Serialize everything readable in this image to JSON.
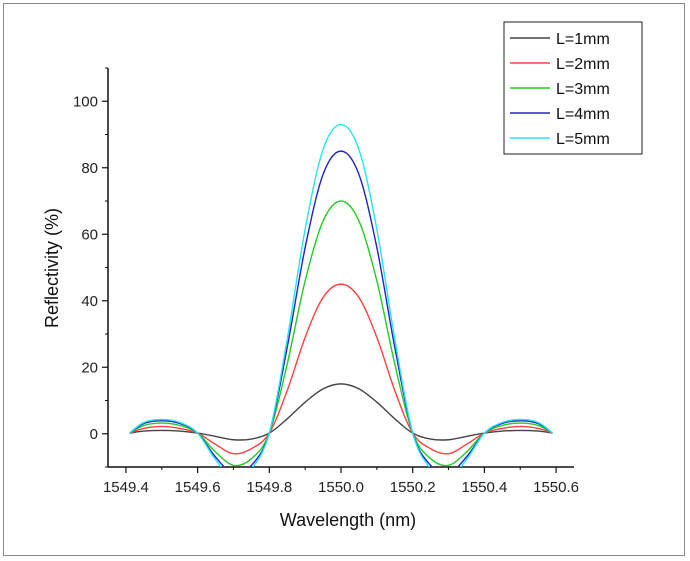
{
  "chart_data": {
    "type": "line",
    "title": "",
    "xlabel": "Wavelength (nm)",
    "ylabel": "Reflectivity (%)",
    "xlim": [
      1549.35,
      1550.65
    ],
    "ylim": [
      -10,
      110
    ],
    "xticks": [
      1549.4,
      1549.6,
      1549.8,
      1550.0,
      1550.2,
      1550.4,
      1550.6
    ],
    "xtick_labels": [
      "1549.4",
      "1549.6",
      "1549.8",
      "1550.0",
      "1550.2",
      "1550.4",
      "1550.6"
    ],
    "yticks": [
      0,
      20,
      40,
      60,
      80,
      100
    ],
    "ytick_labels": [
      "0",
      "20",
      "40",
      "60",
      "80",
      "100"
    ],
    "grid": false,
    "legend_position": "top-right",
    "x": [
      1549.41,
      1549.45,
      1549.5,
      1549.55,
      1549.6,
      1549.65,
      1549.7,
      1549.75,
      1549.8,
      1549.85,
      1549.9,
      1549.95,
      1550.0,
      1550.05,
      1550.1,
      1550.15,
      1550.2,
      1550.25,
      1550.3,
      1550.35,
      1550.4,
      1550.45,
      1550.5,
      1550.55,
      1550.59
    ],
    "series": [
      {
        "name": "L=1mm",
        "color": "#444444",
        "values": [
          0.2,
          0.8,
          1.0,
          0.8,
          0.2,
          -0.8,
          -1.8,
          -1.6,
          0.2,
          4.5,
          9.5,
          13.5,
          15.0,
          13.5,
          9.5,
          4.5,
          0.2,
          -1.6,
          -1.8,
          -0.8,
          0.2,
          0.8,
          1.0,
          0.8,
          0.2
        ]
      },
      {
        "name": "L=2mm",
        "color": "#ff4040",
        "values": [
          0.2,
          1.6,
          2.2,
          1.6,
          0.2,
          -3.2,
          -6.0,
          -4.5,
          0.2,
          13.0,
          29.0,
          41.0,
          45.0,
          41.0,
          29.0,
          13.0,
          0.2,
          -4.5,
          -6.0,
          -3.2,
          0.2,
          1.6,
          2.2,
          1.6,
          0.2
        ]
      },
      {
        "name": "L=3mm",
        "color": "#22cc22",
        "values": [
          0.2,
          2.5,
          3.2,
          2.5,
          0.2,
          -5.5,
          -9.5,
          -7.5,
          0.2,
          21.0,
          46.0,
          64.0,
          70.0,
          64.0,
          46.0,
          21.0,
          0.2,
          -7.5,
          -9.5,
          -5.5,
          0.2,
          2.5,
          3.2,
          2.5,
          0.2
        ]
      },
      {
        "name": "L=4mm",
        "color": "#2222cc",
        "values": [
          0.2,
          3.1,
          3.9,
          3.1,
          0.2,
          -7.0,
          -12.0,
          -9.5,
          0.2,
          26.0,
          56.0,
          78.0,
          85.0,
          78.0,
          56.0,
          26.0,
          0.2,
          -9.5,
          -12.0,
          -7.0,
          0.2,
          3.1,
          3.9,
          3.1,
          0.2
        ]
      },
      {
        "name": "L=5mm",
        "color": "#22e6ee",
        "values": [
          0.2,
          3.4,
          4.3,
          3.4,
          0.2,
          -7.8,
          -13.5,
          -10.5,
          0.2,
          28.5,
          61.5,
          85.5,
          93.0,
          85.5,
          61.5,
          28.5,
          0.2,
          -10.5,
          -13.5,
          -7.8,
          0.2,
          3.4,
          4.3,
          3.4,
          0.2
        ]
      }
    ]
  }
}
